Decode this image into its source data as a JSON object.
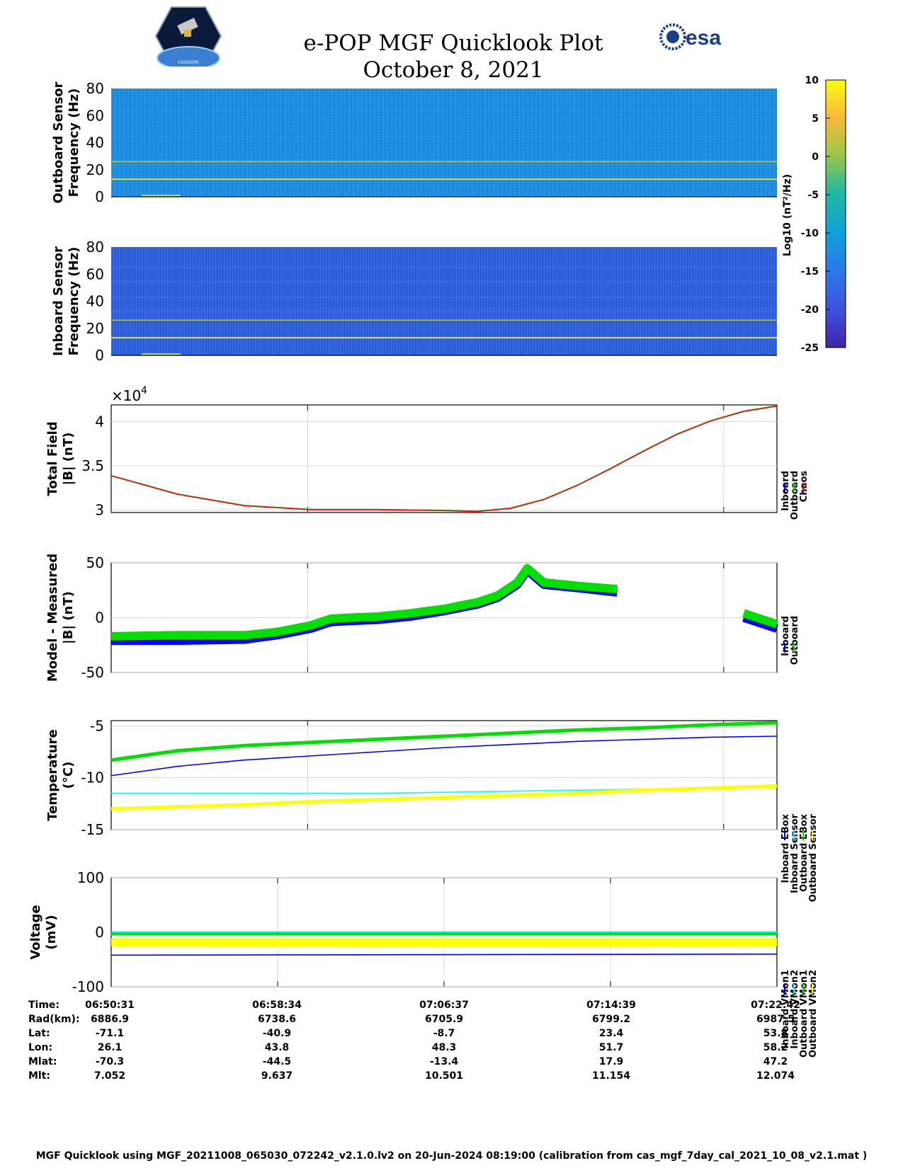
{
  "header": {
    "title_line1": "e-POP MGF Quicklook Plot",
    "title_line2": "October 8, 2021",
    "left_logo_text": "CASSIOPE",
    "right_logo_text": "esa"
  },
  "colorbar": {
    "label": "Log10 (nT²/Hz)",
    "ticks": [
      "10",
      "5",
      "0",
      "-5",
      "-10",
      "-15",
      "-20",
      "-25"
    ]
  },
  "panels": {
    "outboard_spec": {
      "ylabel1": "Outboard Sensor",
      "ylabel2": "Frequency (Hz)",
      "yticks": [
        "80",
        "60",
        "40",
        "20",
        "0"
      ]
    },
    "inboard_spec": {
      "ylabel1": "Inboard Sensor",
      "ylabel2": "Frequency (Hz)",
      "yticks": [
        "80",
        "60",
        "40",
        "20",
        "0"
      ]
    },
    "total_field": {
      "ylabel1": "Total Field",
      "ylabel2": "|B| (nT)",
      "yticks": [
        "4",
        "3.5",
        "3"
      ],
      "exponent": "×10",
      "exponent_power": "4",
      "legend": [
        "Inboard",
        "Outboard",
        "Chaos"
      ]
    },
    "model_measured": {
      "ylabel1": "Model - Measured",
      "ylabel2": "|B| (nT)",
      "yticks": [
        "50",
        "0",
        "-50"
      ],
      "legend": [
        "Inboard",
        "Outboard"
      ]
    },
    "temperature": {
      "ylabel1": "Temperature",
      "ylabel2": "(°C)",
      "yticks": [
        "-5",
        "-10",
        "-15"
      ],
      "legend": [
        "Inboard EBox",
        "Inboard Sensor",
        "Outboard EBox",
        "Outboard Sensor"
      ]
    },
    "voltage": {
      "ylabel1": "Voltage",
      "ylabel2": "(mV)",
      "yticks": [
        "100",
        "0",
        "-100"
      ],
      "legend": [
        "Inboard VMon1",
        "Inboard VMon2",
        "Outboard VMon1",
        "Outboard VMon2"
      ]
    }
  },
  "info_table": {
    "labels": [
      "Time:",
      "Rad(km):",
      "Lat:",
      "Lon:",
      "Mlat:",
      "Mlt:"
    ],
    "columns": [
      [
        "06:50:31",
        "6886.9",
        "-71.1",
        "26.1",
        "-70.3",
        "7.052"
      ],
      [
        "06:58:34",
        "6738.6",
        "-40.9",
        "43.8",
        "-44.5",
        "9.637"
      ],
      [
        "07:06:37",
        "6705.9",
        "-8.7",
        "48.3",
        "-13.4",
        "10.501"
      ],
      [
        "07:14:39",
        "6799.2",
        "23.4",
        "51.7",
        "17.9",
        "11.154"
      ],
      [
        "07:22:42",
        "6987.5",
        "53.8",
        "58.2",
        "47.2",
        "12.074"
      ]
    ]
  },
  "footer": "MGF Quicklook using MGF_20211008_065030_072242_v2.1.0.lv2 on 20-Jun-2024 08:19:00 (calibration from cas_mgf_7day_cal_2021_10_08_v2.1.mat )",
  "chart_data": [
    {
      "type": "heatmap",
      "name": "outboard_spectrogram",
      "ylabel": "Outboard Sensor Frequency (Hz)",
      "ylim": [
        0,
        80
      ],
      "clim": [
        -25,
        10
      ],
      "background_level": -14,
      "lines_hz": [
        13,
        26
      ]
    },
    {
      "type": "heatmap",
      "name": "inboard_spectrogram",
      "ylabel": "Inboard Sensor Frequency (Hz)",
      "ylim": [
        0,
        80
      ],
      "clim": [
        -25,
        10
      ],
      "background_level": -19,
      "lines_hz": [
        13,
        26
      ]
    },
    {
      "type": "line",
      "name": "total_field",
      "ylabel": "Total Field |B| (nT)",
      "ylim": [
        29700,
        41900
      ],
      "xlim": [
        0,
        1
      ],
      "x": [
        0,
        0.1,
        0.2,
        0.3,
        0.4,
        0.5,
        0.55,
        0.6,
        0.65,
        0.7,
        0.75,
        0.8,
        0.85,
        0.9,
        0.95,
        1.0
      ],
      "series": [
        {
          "name": "Inboard",
          "color": "#0000ff",
          "values": [
            33900,
            31800,
            30500,
            30050,
            30050,
            29950,
            29850,
            30200,
            31200,
            32800,
            34700,
            36700,
            38600,
            40100,
            41200,
            41800
          ]
        },
        {
          "name": "Outboard",
          "color": "#00e000",
          "values": [
            33900,
            31800,
            30500,
            30050,
            30050,
            29950,
            29850,
            30200,
            31200,
            32800,
            34700,
            36700,
            38600,
            40100,
            41200,
            41800
          ]
        },
        {
          "name": "Chaos",
          "color": "#ff0000",
          "values": [
            33900,
            31800,
            30500,
            30050,
            30050,
            29950,
            29850,
            30200,
            31200,
            32800,
            34700,
            36700,
            38600,
            40100,
            41200,
            41800
          ]
        }
      ],
      "grid": true
    },
    {
      "type": "line",
      "name": "model_minus_measured",
      "ylabel": "Model - Measured |B| (nT)",
      "ylim": [
        -50,
        50
      ],
      "segments": [
        {
          "x": [
            0,
            0.05,
            0.1,
            0.15,
            0.2,
            0.25,
            0.3,
            0.33,
            0.36,
            0.4,
            0.45,
            0.5,
            0.55,
            0.6,
            0.65,
            0.6,
            0.6
          ],
          "dummy": true
        }
      ],
      "series": [
        {
          "name": "Inboard",
          "color": "#0000ff",
          "x": [
            0,
            0.1,
            0.2,
            0.25,
            0.3,
            0.33,
            0.36,
            0.4,
            0.45,
            0.5,
            0.55,
            0.58,
            0.61,
            0.625,
            0.65,
            0.7,
            0.76
          ],
          "values": [
            -21,
            -21,
            -20,
            -16,
            -10,
            -4,
            -3,
            -2,
            1,
            6,
            12,
            18,
            30,
            43,
            30,
            27,
            23
          ]
        },
        {
          "name": "Outboard",
          "color": "#00e000",
          "x": [
            0,
            0.1,
            0.2,
            0.25,
            0.3,
            0.33,
            0.36,
            0.4,
            0.45,
            0.5,
            0.55,
            0.58,
            0.61,
            0.625,
            0.65,
            0.7,
            0.76
          ],
          "values": [
            -17,
            -16,
            -16,
            -13,
            -7,
            -1,
            0,
            1,
            4,
            8,
            14,
            20,
            32,
            45,
            32,
            29,
            26
          ]
        },
        {
          "name": "Inboard",
          "color": "#0000ff",
          "x": [
            0.95,
            1.0
          ],
          "values": [
            0,
            -10
          ]
        },
        {
          "name": "Outboard",
          "color": "#00e000",
          "x": [
            0.95,
            1.0
          ],
          "values": [
            4,
            -6
          ]
        }
      ],
      "grid": true
    },
    {
      "type": "line",
      "name": "temperature",
      "ylabel": "Temperature (°C)",
      "ylim": [
        -15,
        -4.5
      ],
      "x": [
        0,
        0.1,
        0.2,
        0.3,
        0.4,
        0.5,
        0.6,
        0.7,
        0.8,
        0.9,
        1.0
      ],
      "series": [
        {
          "name": "Inboard EBox",
          "color": "#0000ff",
          "values": [
            -9.8,
            -8.9,
            -8.3,
            -7.9,
            -7.5,
            -7.1,
            -6.8,
            -6.5,
            -6.3,
            -6.1,
            -6.0
          ]
        },
        {
          "name": "Inboard Sensor",
          "color": "#00ffff",
          "values": [
            -11.5,
            -11.5,
            -11.5,
            -11.5,
            -11.5,
            -11.4,
            -11.3,
            -11.2,
            -11.1,
            -11.0,
            -10.9
          ]
        },
        {
          "name": "Outboard EBox",
          "color": "#00e000",
          "values": [
            -8.3,
            -7.4,
            -6.9,
            -6.6,
            -6.3,
            -6.0,
            -5.7,
            -5.4,
            -5.2,
            -4.9,
            -4.7
          ]
        },
        {
          "name": "Outboard Sensor",
          "color": "#ffff00",
          "values": [
            -13.0,
            -12.8,
            -12.6,
            -12.3,
            -12.1,
            -11.9,
            -11.7,
            -11.5,
            -11.2,
            -11.0,
            -10.8
          ]
        }
      ],
      "grid": true
    },
    {
      "type": "line",
      "name": "voltage",
      "ylabel": "Voltage (mV)",
      "ylim": [
        -100,
        100
      ],
      "x": [
        0,
        1
      ],
      "series": [
        {
          "name": "Inboard VMon1",
          "color": "#0000ff",
          "values": [
            -42,
            -40
          ]
        },
        {
          "name": "Inboard VMon2",
          "color": "#00ffff",
          "values": [
            -2,
            -2
          ]
        },
        {
          "name": "Outboard VMon1",
          "color": "#00e000",
          "values": [
            -3,
            -3
          ]
        },
        {
          "name": "Outboard VMon2",
          "color": "#ffff00",
          "values": [
            -18,
            -18
          ]
        }
      ],
      "grid": true
    }
  ]
}
